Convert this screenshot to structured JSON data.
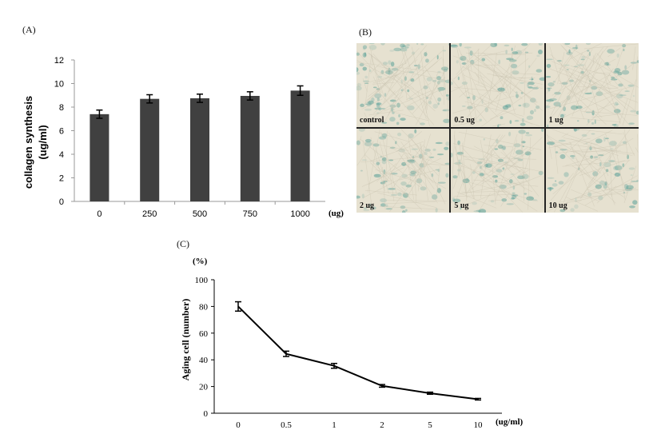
{
  "panels": {
    "a": "(A)",
    "b": "(B)",
    "c": "(C)"
  },
  "chart_data": [
    {
      "type": "bar",
      "ylabel_line1": "collagen synthesis",
      "ylabel_line2": "(ug/ml)",
      "x_unit": "(ug)",
      "categories": [
        "0",
        "250",
        "500",
        "750",
        "1000"
      ],
      "values": [
        7.4,
        8.7,
        8.75,
        8.95,
        9.4
      ],
      "errors": [
        0.35,
        0.35,
        0.35,
        0.35,
        0.4
      ],
      "ylim": [
        0,
        12
      ],
      "yticks": [
        "0",
        "2",
        "4",
        "6",
        "8",
        "10",
        "12"
      ],
      "bar_color": "#404040",
      "grid": false
    },
    {
      "type": "line",
      "ylabel": "Aging cell (number)",
      "y_unit": "(%)",
      "x_unit": "(ug/ml)",
      "categories": [
        "0",
        "0.5",
        "1",
        "2",
        "5",
        "10"
      ],
      "values": [
        80,
        44.5,
        35.5,
        20.5,
        15,
        10.5
      ],
      "errors": [
        3.5,
        2,
        1.8,
        1,
        0.8,
        0.6
      ],
      "ylim": [
        0,
        100
      ],
      "yticks": [
        "0",
        "20",
        "40",
        "60",
        "80",
        "100"
      ],
      "grid": false
    }
  ],
  "micrographs": {
    "tiles": [
      {
        "label": "control",
        "stain": 0.9
      },
      {
        "label": "0.5 ug",
        "stain": 0.45
      },
      {
        "label": "1 ug",
        "stain": 0.55
      },
      {
        "label": "2 ug",
        "stain": 0.5
      },
      {
        "label": "5 ug",
        "stain": 0.35
      },
      {
        "label": "10 ug",
        "stain": 0.3
      }
    ],
    "background_color": "#e6e1d0",
    "stain_color": "#5fa39a"
  }
}
